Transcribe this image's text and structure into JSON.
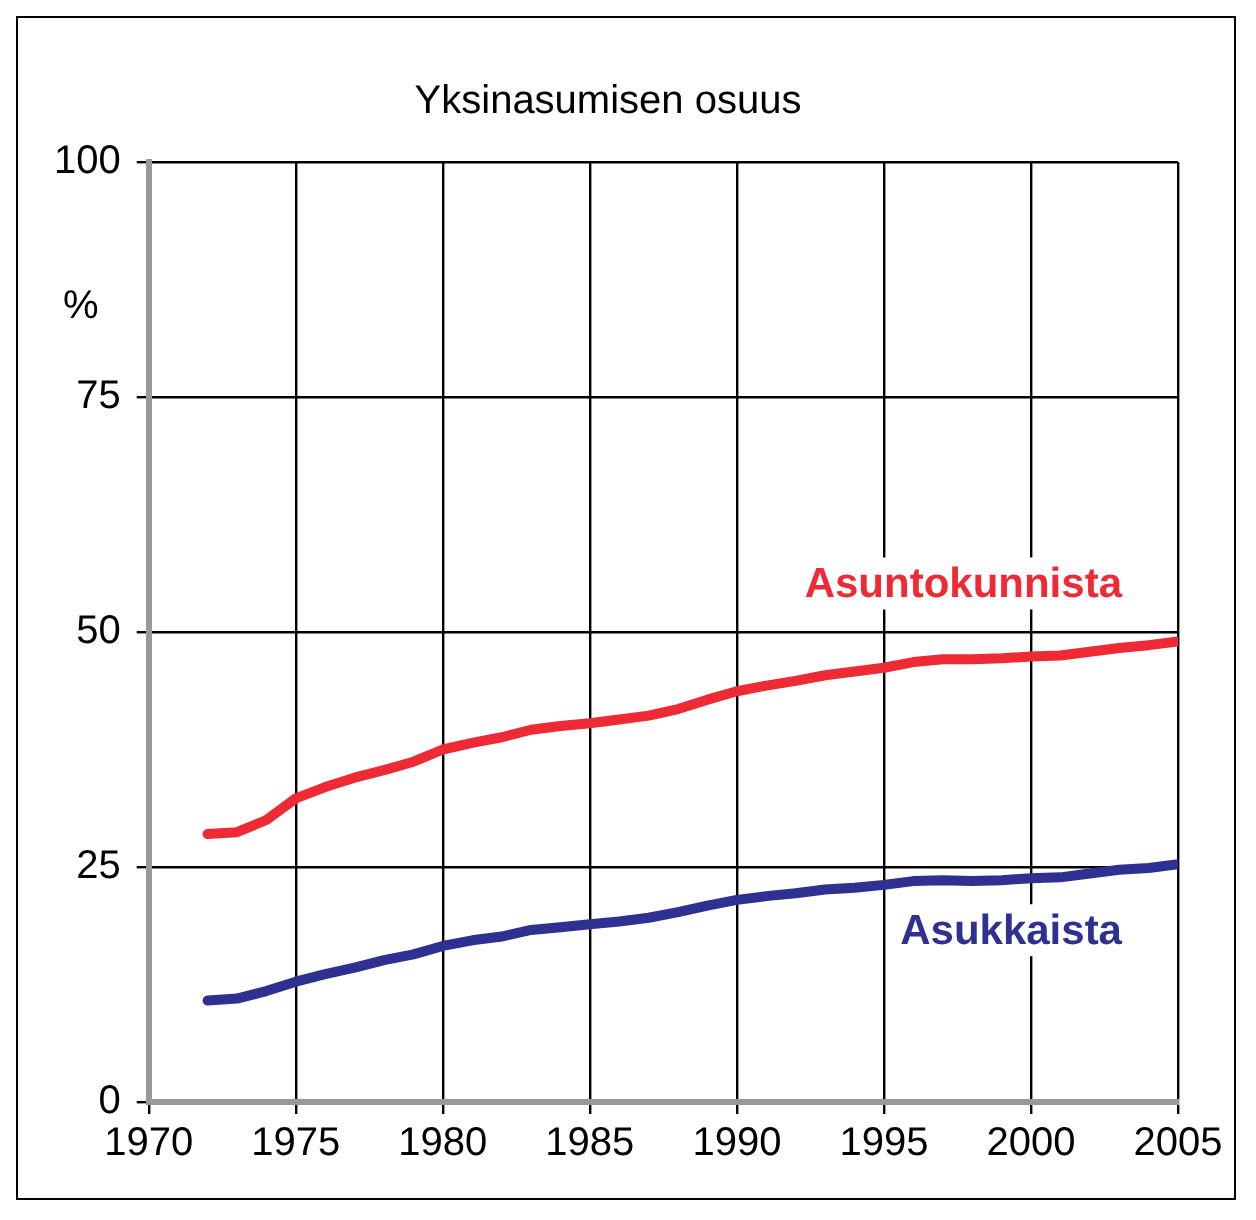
{
  "chart_data": {
    "type": "line",
    "title": "Yksinasumisen osuus",
    "ylabel": "%",
    "x": [
      1972,
      1973,
      1974,
      1975,
      1976,
      1977,
      1978,
      1979,
      1980,
      1981,
      1982,
      1983,
      1984,
      1985,
      1986,
      1987,
      1988,
      1989,
      1990,
      1991,
      1992,
      1993,
      1994,
      1995,
      1996,
      1997,
      1998,
      1999,
      2000,
      2001,
      2002,
      2003,
      2004,
      2005
    ],
    "series": [
      {
        "name": "Asuntokunnista",
        "color": "#ee2a35",
        "values": [
          28.5,
          28.7,
          30,
          32.3,
          33.5,
          34.5,
          35.3,
          36.2,
          37.5,
          38.2,
          38.8,
          39.6,
          40,
          40.3,
          40.7,
          41.1,
          41.8,
          42.8,
          43.7,
          44.3,
          44.8,
          45.4,
          45.8,
          46.2,
          46.8,
          47.1,
          47.1,
          47.2,
          47.4,
          47.5,
          47.9,
          48.3,
          48.6,
          49
        ]
      },
      {
        "name": "Asukkaista",
        "color": "#2e3192",
        "values": [
          10.8,
          11,
          11.8,
          12.8,
          13.6,
          14.3,
          15.1,
          15.7,
          16.6,
          17.2,
          17.6,
          18.3,
          18.6,
          18.9,
          19.2,
          19.6,
          20.2,
          20.9,
          21.5,
          21.9,
          22.2,
          22.6,
          22.8,
          23.1,
          23.5,
          23.6,
          23.5,
          23.6,
          23.8,
          23.9,
          24.3,
          24.7,
          24.9,
          25.3
        ]
      }
    ],
    "xlim": [
      1970,
      2005
    ],
    "xticks": [
      1970,
      1975,
      1980,
      1985,
      1990,
      1995,
      2000,
      2005
    ],
    "ylim": [
      0,
      100
    ],
    "yticks": [
      0,
      25,
      50,
      75,
      100
    ],
    "grid": true,
    "legend": false,
    "marker": "none",
    "line_style": "solid"
  }
}
